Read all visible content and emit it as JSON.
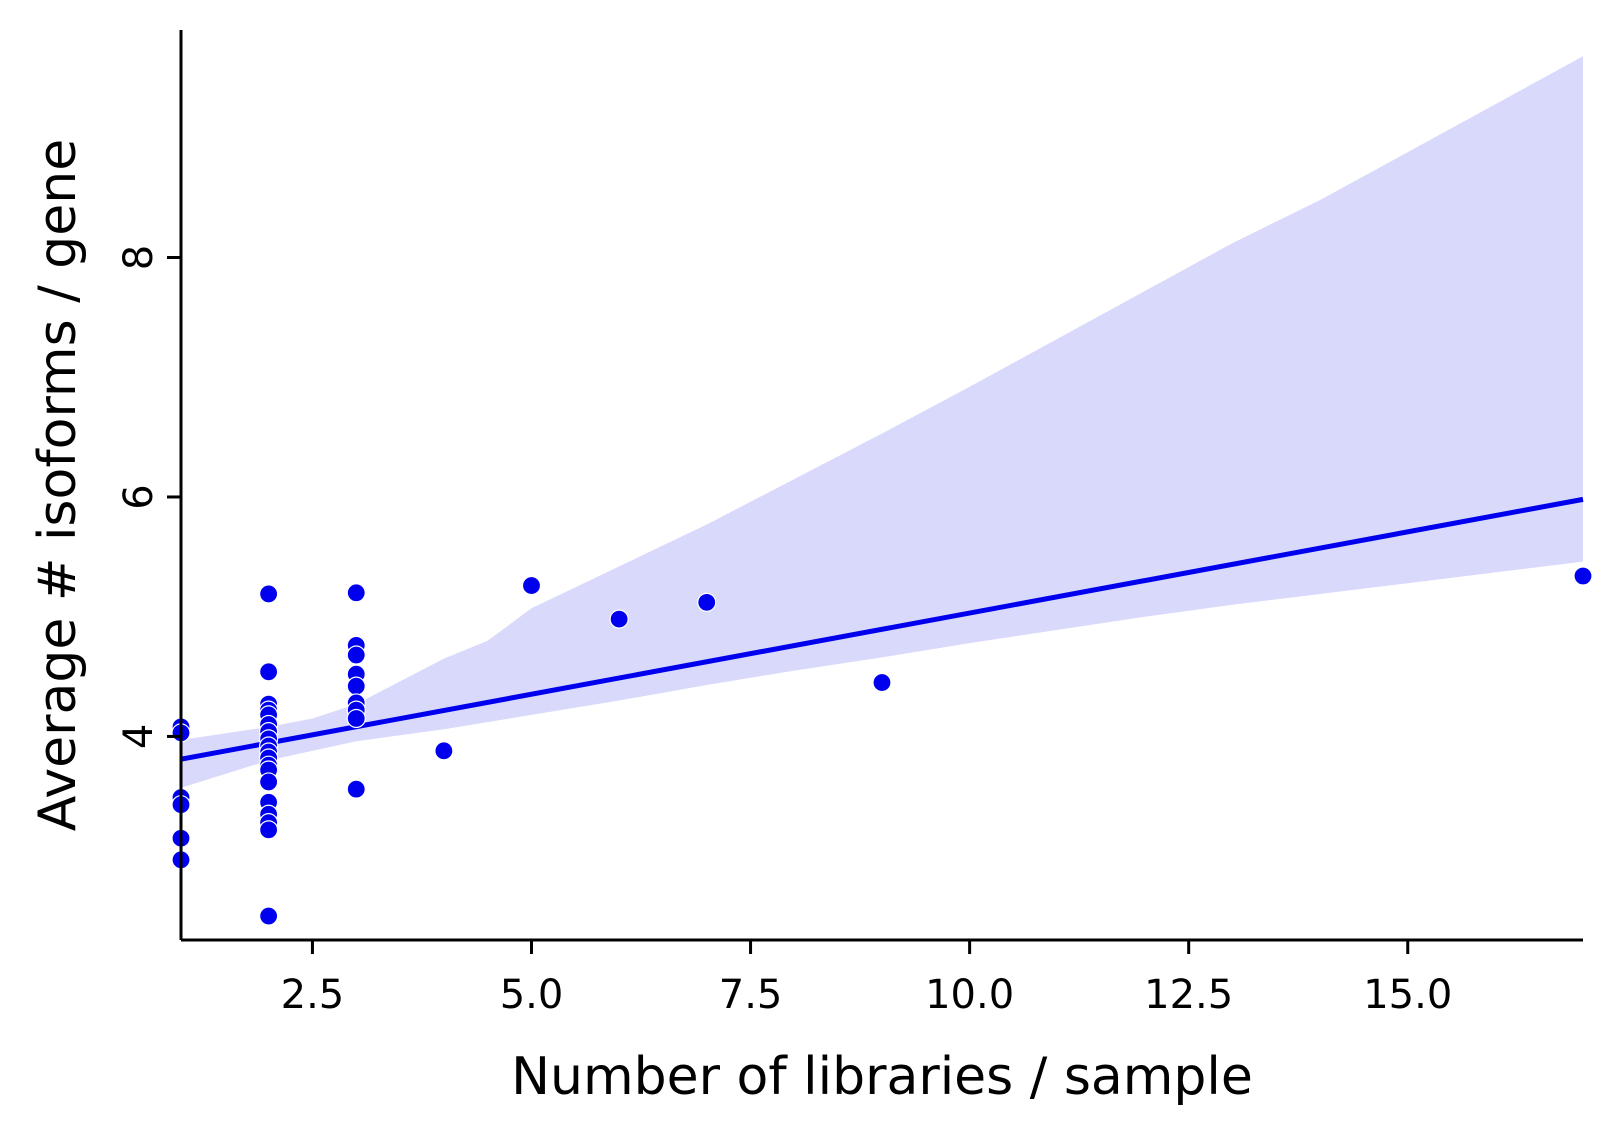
{
  "chart_data": {
    "type": "scatter",
    "title": "",
    "xlabel": "Number of libraries / sample",
    "ylabel": "Average # isoforms / gene",
    "xlim": [
      1.0,
      17.0
    ],
    "ylim": [
      2.3,
      9.9
    ],
    "xticks": [
      2.5,
      5.0,
      7.5,
      10.0,
      12.5,
      15.0
    ],
    "xtick_labels": [
      "2.5",
      "5.0",
      "7.5",
      "10.0",
      "12.5",
      "15.0"
    ],
    "yticks": [
      4,
      6,
      8
    ],
    "ytick_labels": [
      "4",
      "6",
      "8"
    ],
    "grid": false,
    "legend": "none",
    "colors": {
      "points": "#0000ee",
      "line": "#0000ee",
      "band": "#d9d9fc",
      "axis": "#000000"
    },
    "points": [
      {
        "x": 1,
        "y": 4.08
      },
      {
        "x": 1,
        "y": 4.03
      },
      {
        "x": 1,
        "y": 3.49
      },
      {
        "x": 1,
        "y": 3.43
      },
      {
        "x": 1,
        "y": 3.15
      },
      {
        "x": 1,
        "y": 2.97
      },
      {
        "x": 2,
        "y": 5.19
      },
      {
        "x": 2,
        "y": 4.54
      },
      {
        "x": 2,
        "y": 4.27
      },
      {
        "x": 2,
        "y": 4.22
      },
      {
        "x": 2,
        "y": 4.18
      },
      {
        "x": 2,
        "y": 4.1
      },
      {
        "x": 2,
        "y": 4.04
      },
      {
        "x": 2,
        "y": 3.98
      },
      {
        "x": 2,
        "y": 3.92
      },
      {
        "x": 2,
        "y": 3.87
      },
      {
        "x": 2,
        "y": 3.82
      },
      {
        "x": 2,
        "y": 3.76
      },
      {
        "x": 2,
        "y": 3.72
      },
      {
        "x": 2,
        "y": 3.62
      },
      {
        "x": 2,
        "y": 3.45
      },
      {
        "x": 2,
        "y": 3.35
      },
      {
        "x": 2,
        "y": 3.28
      },
      {
        "x": 2,
        "y": 3.22
      },
      {
        "x": 2,
        "y": 2.5
      },
      {
        "x": 3,
        "y": 5.2
      },
      {
        "x": 3,
        "y": 4.76
      },
      {
        "x": 3,
        "y": 4.68
      },
      {
        "x": 3,
        "y": 4.52
      },
      {
        "x": 3,
        "y": 4.42
      },
      {
        "x": 3,
        "y": 4.28
      },
      {
        "x": 3,
        "y": 4.22
      },
      {
        "x": 3,
        "y": 4.15
      },
      {
        "x": 3,
        "y": 3.56
      },
      {
        "x": 4,
        "y": 3.88
      },
      {
        "x": 5,
        "y": 5.26
      },
      {
        "x": 6,
        "y": 4.98
      },
      {
        "x": 7,
        "y": 5.12
      },
      {
        "x": 9,
        "y": 4.45
      },
      {
        "x": 17,
        "y": 5.34
      }
    ],
    "regression": {
      "line": [
        {
          "x": 1.0,
          "y": 3.81
        },
        {
          "x": 17.0,
          "y": 5.98
        }
      ],
      "ci_upper": [
        {
          "x": 1.0,
          "y": 3.97
        },
        {
          "x": 2.0,
          "y": 4.08
        },
        {
          "x": 2.5,
          "y": 4.15
        },
        {
          "x": 3.0,
          "y": 4.27
        },
        {
          "x": 3.5,
          "y": 4.46
        },
        {
          "x": 4.0,
          "y": 4.65
        },
        {
          "x": 4.5,
          "y": 4.8
        },
        {
          "x": 5.0,
          "y": 5.07
        },
        {
          "x": 6.0,
          "y": 5.42
        },
        {
          "x": 7.0,
          "y": 5.77
        },
        {
          "x": 8.0,
          "y": 6.15
        },
        {
          "x": 9.0,
          "y": 6.53
        },
        {
          "x": 10.0,
          "y": 6.92
        },
        {
          "x": 11.0,
          "y": 7.32
        },
        {
          "x": 12.0,
          "y": 7.72
        },
        {
          "x": 13.0,
          "y": 8.12
        },
        {
          "x": 14.0,
          "y": 8.48
        },
        {
          "x": 15.0,
          "y": 8.88
        },
        {
          "x": 16.0,
          "y": 9.28
        },
        {
          "x": 17.0,
          "y": 9.68
        }
      ],
      "ci_lower": [
        {
          "x": 1.0,
          "y": 3.57
        },
        {
          "x": 2.0,
          "y": 3.8
        },
        {
          "x": 3.0,
          "y": 3.96
        },
        {
          "x": 4.0,
          "y": 4.06
        },
        {
          "x": 5.0,
          "y": 4.18
        },
        {
          "x": 6.0,
          "y": 4.3
        },
        {
          "x": 7.0,
          "y": 4.43
        },
        {
          "x": 8.0,
          "y": 4.55
        },
        {
          "x": 9.0,
          "y": 4.66
        },
        {
          "x": 10.0,
          "y": 4.78
        },
        {
          "x": 11.0,
          "y": 4.89
        },
        {
          "x": 12.0,
          "y": 5.0
        },
        {
          "x": 13.0,
          "y": 5.1
        },
        {
          "x": 14.0,
          "y": 5.19
        },
        {
          "x": 15.0,
          "y": 5.28
        },
        {
          "x": 16.0,
          "y": 5.37
        },
        {
          "x": 17.0,
          "y": 5.46
        }
      ]
    }
  }
}
